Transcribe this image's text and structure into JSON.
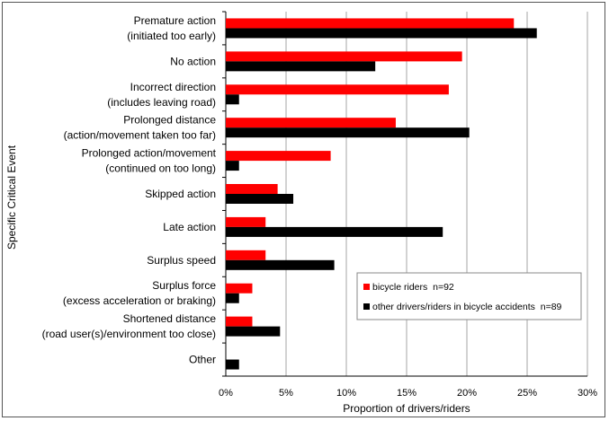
{
  "chart_data": {
    "type": "bar",
    "orientation": "horizontal",
    "xlabel": "Proportion of drivers/riders",
    "ylabel": "Specific Critical Event",
    "xlim": [
      0,
      30
    ],
    "x_ticks": [
      "0%",
      "5%",
      "10%",
      "15%",
      "20%",
      "25%",
      "30%"
    ],
    "grid": "vertical gridlines",
    "legend_position": "lower-right",
    "categories": [
      [
        "Premature action",
        "(initiated too early)"
      ],
      [
        "No action"
      ],
      [
        "Incorrect direction",
        "(includes leaving road)"
      ],
      [
        "Prolonged distance",
        "(action/movement taken too far)"
      ],
      [
        "Prolonged action/movement",
        "(continued on too long)"
      ],
      [
        "Skipped action"
      ],
      [
        "Late action"
      ],
      [
        "Surplus speed"
      ],
      [
        "Surplus force",
        "(excess acceleration or braking)"
      ],
      [
        "Shortened distance",
        "(road user(s)/environment too close)"
      ],
      [
        "Other"
      ]
    ],
    "series": [
      {
        "name": "bicycle riders  n=92",
        "color": "#ff0000",
        "values": [
          23.9,
          19.6,
          18.5,
          14.1,
          8.7,
          4.3,
          3.3,
          3.3,
          2.2,
          2.2,
          0
        ]
      },
      {
        "name": "other drivers/riders in bicycle accidents  n=89",
        "color": "#000000",
        "values": [
          25.8,
          12.4,
          1.1,
          20.2,
          1.1,
          5.6,
          18.0,
          9.0,
          1.1,
          4.5,
          1.1
        ]
      }
    ]
  }
}
